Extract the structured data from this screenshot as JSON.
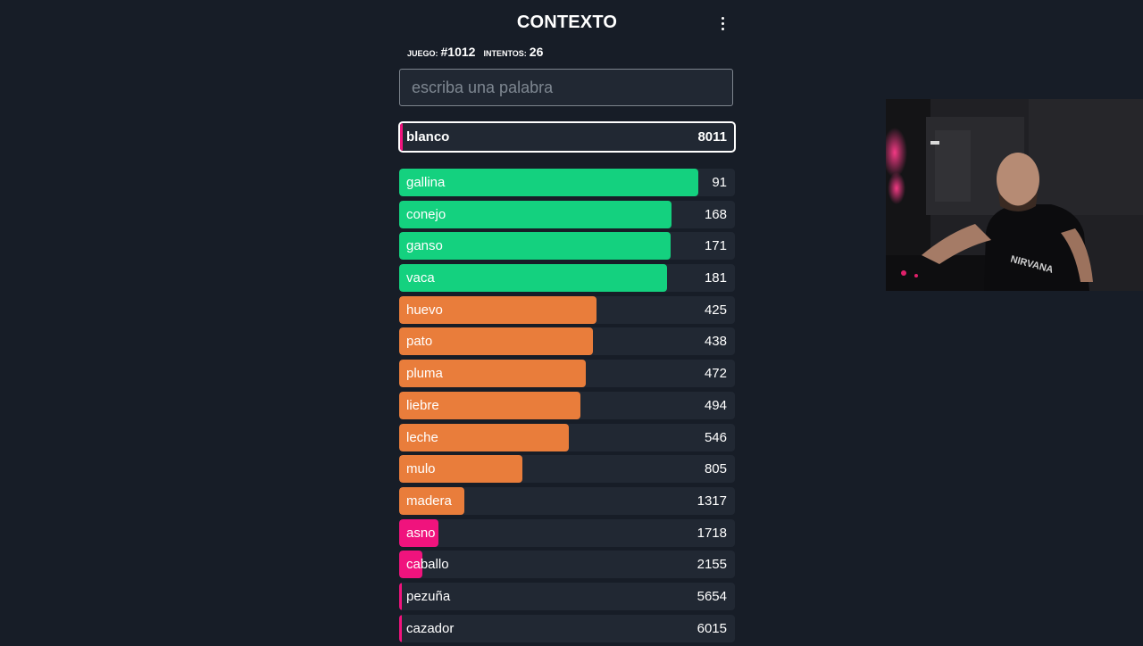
{
  "header": {
    "title": "CONTEXTO"
  },
  "game_info": {
    "game_label": "JUEGO:",
    "game_number": "#1012",
    "attempts_label": "INTENTOS:",
    "attempts_count": "26"
  },
  "search": {
    "placeholder": "escriba una palabra",
    "value": ""
  },
  "colors": {
    "green": "#14d17f",
    "orange": "#e97d3b",
    "pink": "#f0137d",
    "row_bg": "#212833",
    "page_bg": "#171d27"
  },
  "last_guess": {
    "word": "blanco",
    "rank": "8011",
    "bar_fraction": 0.005,
    "color": "#f0137d"
  },
  "guesses": [
    {
      "word": "gallina",
      "rank": "91",
      "bar_fraction": 0.89,
      "color": "#14d17f"
    },
    {
      "word": "conejo",
      "rank": "168",
      "bar_fraction": 0.81,
      "color": "#14d17f"
    },
    {
      "word": "ganso",
      "rank": "171",
      "bar_fraction": 0.808,
      "color": "#14d17f"
    },
    {
      "word": "vaca",
      "rank": "181",
      "bar_fraction": 0.797,
      "color": "#14d17f"
    },
    {
      "word": "huevo",
      "rank": "425",
      "bar_fraction": 0.587,
      "color": "#e97d3b"
    },
    {
      "word": "pato",
      "rank": "438",
      "bar_fraction": 0.578,
      "color": "#e97d3b"
    },
    {
      "word": "pluma",
      "rank": "472",
      "bar_fraction": 0.556,
      "color": "#e97d3b"
    },
    {
      "word": "liebre",
      "rank": "494",
      "bar_fraction": 0.54,
      "color": "#e97d3b"
    },
    {
      "word": "leche",
      "rank": "546",
      "bar_fraction": 0.505,
      "color": "#e97d3b"
    },
    {
      "word": "mulo",
      "rank": "805",
      "bar_fraction": 0.366,
      "color": "#e97d3b"
    },
    {
      "word": "madera",
      "rank": "1317",
      "bar_fraction": 0.193,
      "color": "#e97d3b"
    },
    {
      "word": "asno",
      "rank": "1718",
      "bar_fraction": 0.117,
      "color": "#f0137d"
    },
    {
      "word": "caballo",
      "rank": "2155",
      "bar_fraction": 0.069,
      "color": "#f0137d"
    },
    {
      "word": "pezuña",
      "rank": "5654",
      "bar_fraction": 0.008,
      "color": "#f0137d"
    },
    {
      "word": "cazador",
      "rank": "6015",
      "bar_fraction": 0.008,
      "color": "#f0137d"
    }
  ]
}
